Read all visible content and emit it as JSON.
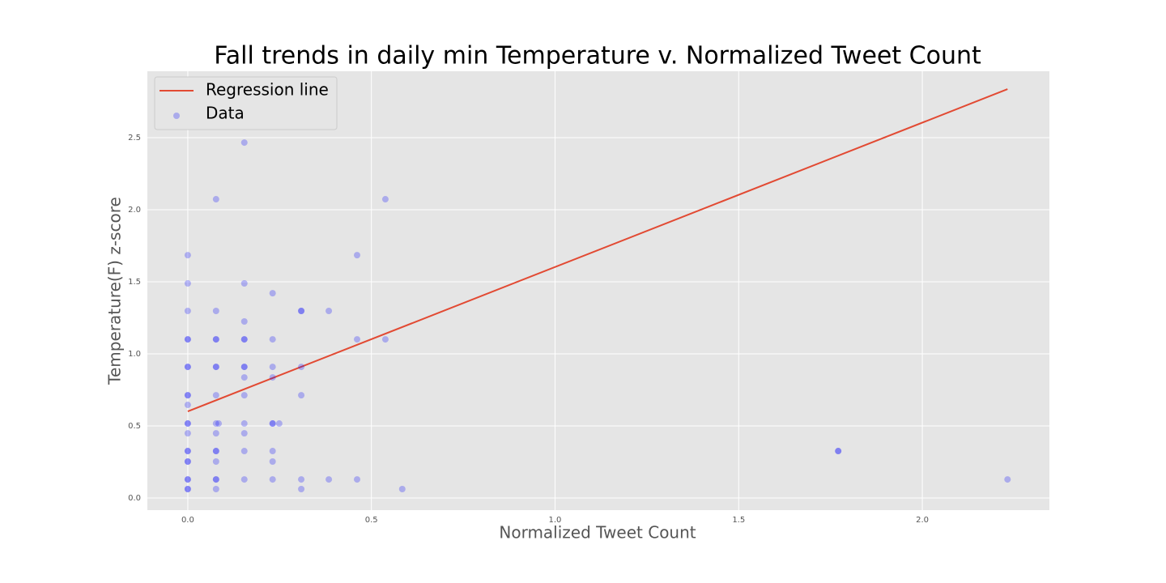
{
  "chart_data": {
    "type": "scatter",
    "title": "Fall trends in daily min Temperature v. Normalized Tweet Count",
    "x_label": "Normalized Tweet Count",
    "y_label": "Temperature(F) z-score",
    "xlim": [
      -0.11,
      2.346
    ],
    "ylim": [
      -0.084,
      2.961
    ],
    "xticks": [
      {
        "value": 0,
        "label": "0.0"
      },
      0.5,
      {
        "value": 1,
        "label": "1.0"
      },
      1.5,
      {
        "value": 2,
        "label": "2.0"
      }
    ],
    "yticks": [
      {
        "value": 0,
        "label": "0.0"
      },
      0.5,
      {
        "value": 1,
        "label": "1.0"
      },
      1.5,
      {
        "value": 2,
        "label": "2.0"
      },
      2.5
    ],
    "grid": true,
    "legend": "upper-left",
    "series": [
      {
        "name": "Regression line",
        "mode": "line",
        "color": "#e24a33",
        "x": [
          0,
          2.232
        ],
        "values": [
          0.601,
          2.837
        ]
      },
      {
        "name": "Data",
        "mode": "markers",
        "color": "#0000ff",
        "opacity": 0.25,
        "x": [
          0,
          0,
          0,
          0,
          0,
          0,
          0,
          0,
          0,
          0,
          0,
          0,
          0,
          0,
          0,
          0,
          0,
          0,
          0,
          0,
          0,
          0.077,
          0.077,
          0.077,
          0.077,
          0.077,
          0.077,
          0.077,
          0.077,
          0.077,
          0.077,
          0.077,
          0.077,
          0.077,
          0.077,
          0.077,
          0.084,
          0.154,
          0.154,
          0.154,
          0.154,
          0.154,
          0.154,
          0.154,
          0.154,
          0.154,
          0.154,
          0.154,
          0.154,
          0.154,
          0.231,
          0.231,
          0.231,
          0.231,
          0.231,
          0.231,
          0.231,
          0.231,
          0.231,
          0.249,
          0.309,
          0.309,
          0.309,
          0.309,
          0.309,
          0.309,
          0.384,
          0.384,
          0.461,
          0.461,
          0.461,
          0.538,
          0.538,
          0.584,
          1.771,
          1.771,
          2.232
        ],
        "values": [
          0.062,
          0.129,
          0.253,
          0.326,
          0.449,
          0.517,
          0.646,
          0.713,
          0.91,
          1.101,
          1.298,
          1.489,
          1.685,
          0.062,
          0.129,
          0.253,
          0.326,
          0.517,
          0.713,
          0.91,
          1.101,
          0.062,
          0.129,
          0.253,
          0.326,
          0.449,
          0.517,
          0.713,
          0.91,
          1.101,
          1.298,
          2.073,
          0.129,
          0.326,
          0.91,
          1.101,
          0.517,
          0.129,
          0.326,
          0.449,
          0.517,
          0.713,
          0.837,
          0.91,
          1.101,
          1.225,
          1.489,
          2.466,
          0.91,
          1.101,
          0.129,
          0.253,
          0.326,
          0.517,
          0.837,
          0.91,
          1.101,
          1.421,
          0.517,
          0.517,
          0.062,
          0.129,
          0.713,
          0.91,
          1.298,
          1.298,
          0.129,
          1.298,
          0.129,
          1.101,
          1.685,
          1.101,
          2.073,
          0.062,
          0.326,
          0.326,
          0.129
        ]
      }
    ]
  }
}
